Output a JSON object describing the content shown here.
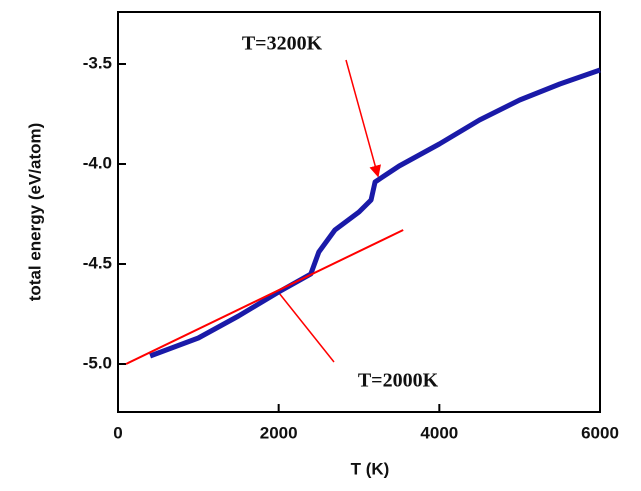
{
  "chart_data": {
    "type": "line",
    "xlabel": "T (K)",
    "ylabel": "total energy (eV/atom)",
    "annotations": [
      "T=3200K",
      "T=2000K"
    ],
    "xlim": [
      0,
      6000
    ],
    "xticks": [
      0,
      2000,
      4000,
      6000
    ],
    "ylim": [
      -5.24,
      -3.24
    ],
    "yticks": [
      {
        "value": -5.0,
        "label": "-5.0"
      },
      -4.5,
      {
        "value": -4.0,
        "label": "-4.0"
      },
      -3.5
    ],
    "series": [
      {
        "color": "#1a1aa8",
        "x": [
          400,
          1000,
          1500,
          2000,
          2400,
          2500,
          2700,
          3000,
          3150,
          3200,
          3500,
          4000,
          4500,
          5000,
          5500,
          6000
        ],
        "values": [
          -4.96,
          -4.87,
          -4.76,
          -4.64,
          -4.55,
          -4.44,
          -4.33,
          -4.24,
          -4.18,
          -4.09,
          -4.01,
          -3.9,
          -3.78,
          -3.68,
          -3.6,
          -3.53
        ]
      },
      {
        "color": "#ff0000",
        "x": [
          100,
          3550
        ],
        "values": [
          -5.0,
          -4.33
        ]
      }
    ]
  }
}
